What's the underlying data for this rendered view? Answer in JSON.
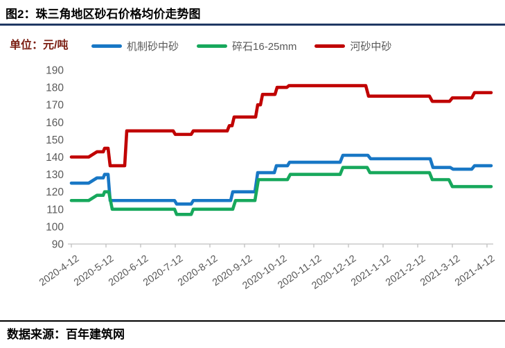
{
  "header": {
    "title": "图2：珠三角地区砂石价格均价走势图"
  },
  "unit_label": "单位：元/吨",
  "footer": {
    "source_label": "数据来源：百年建筑网"
  },
  "colors": {
    "title_rule": "#1F3864",
    "unit_text": "#7B1E12",
    "axis_text": "#595959",
    "axis_line": "#BFBFBF",
    "footer_rule": "#000000"
  },
  "chart_data": {
    "type": "line",
    "title": "图2：珠三角地区砂石价格均价走势图",
    "unit": "元/吨",
    "grid": false,
    "legend_position": "top",
    "y_axis": {
      "min": 90,
      "max": 190,
      "step": 10,
      "tick_labels": [
        "190",
        "180",
        "170",
        "160",
        "150",
        "140",
        "130",
        "120",
        "110",
        "100",
        "90"
      ]
    },
    "x_axis": {
      "x_encoding": "months_since_first_tick",
      "tick_labels": [
        "2020-4-12",
        "2020-5-12",
        "2020-6-12",
        "2020-7-12",
        "2020-8-12",
        "2020-9-12",
        "2020-10-12",
        "2020-11-12",
        "2020-12-12",
        "2021-1-12",
        "2021-2-12",
        "2021-3-12",
        "2021-4-12"
      ]
    },
    "series": [
      {
        "name": "机制砂中砂",
        "color": "#1877C5",
        "points": [
          [
            0,
            125
          ],
          [
            0.5,
            125
          ],
          [
            0.74,
            128
          ],
          [
            0.92,
            128
          ],
          [
            0.96,
            130
          ],
          [
            1.06,
            130
          ],
          [
            1.12,
            115
          ],
          [
            2.98,
            115
          ],
          [
            3.04,
            113
          ],
          [
            3.46,
            113
          ],
          [
            3.52,
            115
          ],
          [
            4.6,
            115
          ],
          [
            4.66,
            120
          ],
          [
            5.3,
            120
          ],
          [
            5.38,
            131
          ],
          [
            5.86,
            131
          ],
          [
            5.92,
            135
          ],
          [
            6.24,
            135
          ],
          [
            6.3,
            137
          ],
          [
            7.76,
            137
          ],
          [
            7.84,
            141
          ],
          [
            8.56,
            141
          ],
          [
            8.64,
            139
          ],
          [
            10.36,
            139
          ],
          [
            10.44,
            134
          ],
          [
            10.94,
            134
          ],
          [
            11.02,
            133
          ],
          [
            11.56,
            133
          ],
          [
            11.64,
            135
          ],
          [
            12.12,
            135
          ]
        ]
      },
      {
        "name": "碎石16-25mm",
        "color": "#17A85C",
        "points": [
          [
            0,
            115
          ],
          [
            0.5,
            115
          ],
          [
            0.74,
            118
          ],
          [
            0.92,
            118
          ],
          [
            0.96,
            120
          ],
          [
            1.08,
            120
          ],
          [
            1.18,
            110
          ],
          [
            2.98,
            110
          ],
          [
            3.04,
            107
          ],
          [
            3.46,
            107
          ],
          [
            3.52,
            110
          ],
          [
            4.66,
            110
          ],
          [
            4.74,
            115
          ],
          [
            5.3,
            115
          ],
          [
            5.4,
            127
          ],
          [
            6.24,
            127
          ],
          [
            6.32,
            130
          ],
          [
            7.76,
            130
          ],
          [
            7.84,
            134
          ],
          [
            8.54,
            134
          ],
          [
            8.62,
            131
          ],
          [
            10.34,
            131
          ],
          [
            10.42,
            127
          ],
          [
            10.9,
            127
          ],
          [
            11.0,
            123
          ],
          [
            12.12,
            123
          ]
        ]
      },
      {
        "name": "河砂中砂",
        "color": "#C00000",
        "points": [
          [
            0,
            140
          ],
          [
            0.5,
            140
          ],
          [
            0.74,
            143
          ],
          [
            0.92,
            143
          ],
          [
            0.96,
            145
          ],
          [
            1.06,
            145
          ],
          [
            1.12,
            135
          ],
          [
            1.54,
            135
          ],
          [
            1.6,
            155
          ],
          [
            2.94,
            155
          ],
          [
            3.0,
            153
          ],
          [
            3.46,
            153
          ],
          [
            3.52,
            155
          ],
          [
            4.5,
            155
          ],
          [
            4.56,
            158
          ],
          [
            4.64,
            158
          ],
          [
            4.7,
            163
          ],
          [
            5.32,
            163
          ],
          [
            5.38,
            170
          ],
          [
            5.46,
            170
          ],
          [
            5.52,
            176
          ],
          [
            5.88,
            176
          ],
          [
            5.94,
            180
          ],
          [
            6.22,
            180
          ],
          [
            6.28,
            181
          ],
          [
            8.5,
            181
          ],
          [
            8.58,
            175
          ],
          [
            10.34,
            175
          ],
          [
            10.42,
            172
          ],
          [
            10.92,
            172
          ],
          [
            11.0,
            174
          ],
          [
            11.56,
            174
          ],
          [
            11.64,
            177
          ],
          [
            12.12,
            177
          ]
        ]
      }
    ]
  }
}
